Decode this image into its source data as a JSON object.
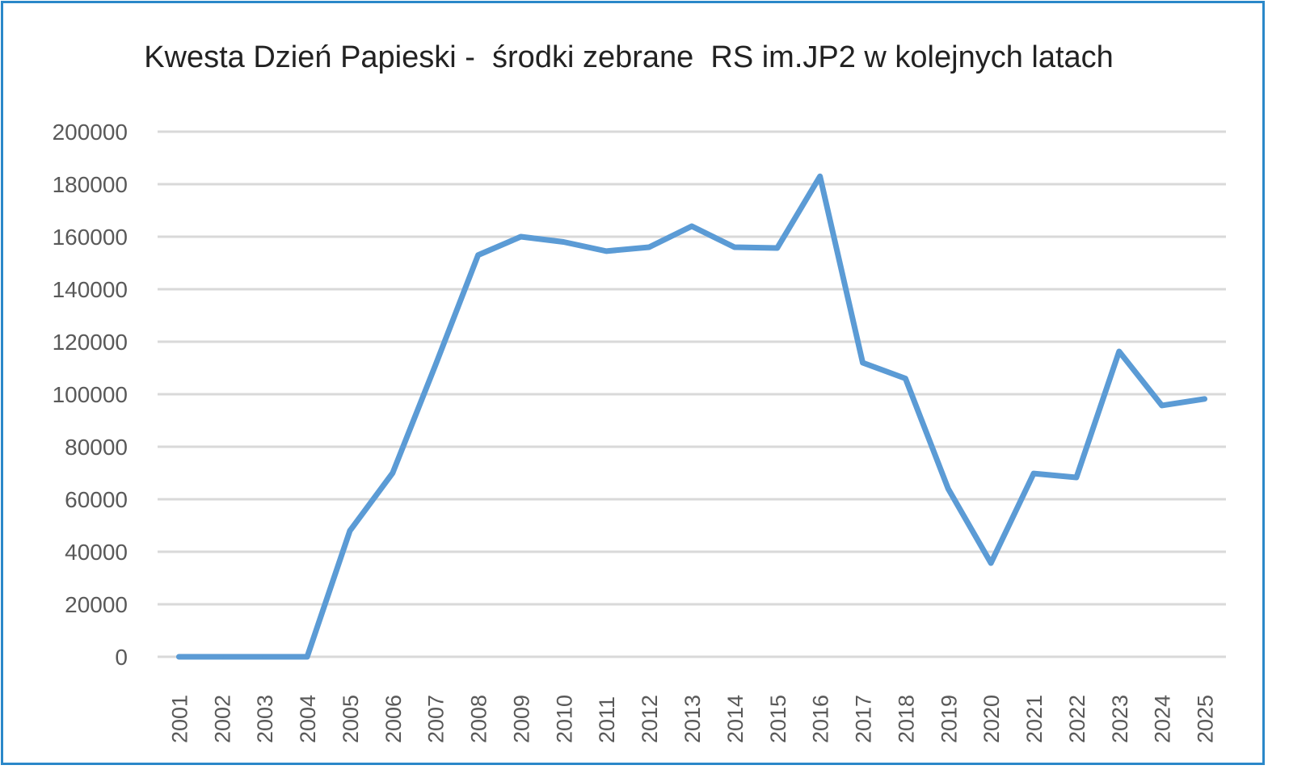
{
  "chart_data": {
    "type": "line",
    "title": "Kwesta Dzień Papieski -  środki zebrane  RS im.JP2 w kolejnych latach",
    "xlabel": "",
    "ylabel": "",
    "categories": [
      "2001",
      "2002",
      "2003",
      "2004",
      "2005",
      "2006",
      "2007",
      "2008",
      "2009",
      "2010",
      "2011",
      "2012",
      "2013",
      "2014",
      "2015",
      "2016",
      "2017",
      "2018",
      "2019",
      "2020",
      "2021",
      "2022",
      "2023",
      "2024",
      "2025"
    ],
    "series": [
      {
        "name": "środki zebrane",
        "color": "#5b9bd5",
        "values": [
          0,
          0,
          0,
          0,
          48000,
          70000,
          111000,
          153000,
          160000,
          158000,
          154500,
          156000,
          164000,
          156000,
          155700,
          183000,
          112000,
          106000,
          64000,
          35700,
          69800,
          68300,
          116300,
          95700,
          98200
        ]
      }
    ],
    "ylim": [
      0,
      200000
    ],
    "yticks": [
      0,
      20000,
      40000,
      60000,
      80000,
      100000,
      120000,
      140000,
      160000,
      180000,
      200000
    ],
    "grid": true,
    "legend": "none"
  }
}
